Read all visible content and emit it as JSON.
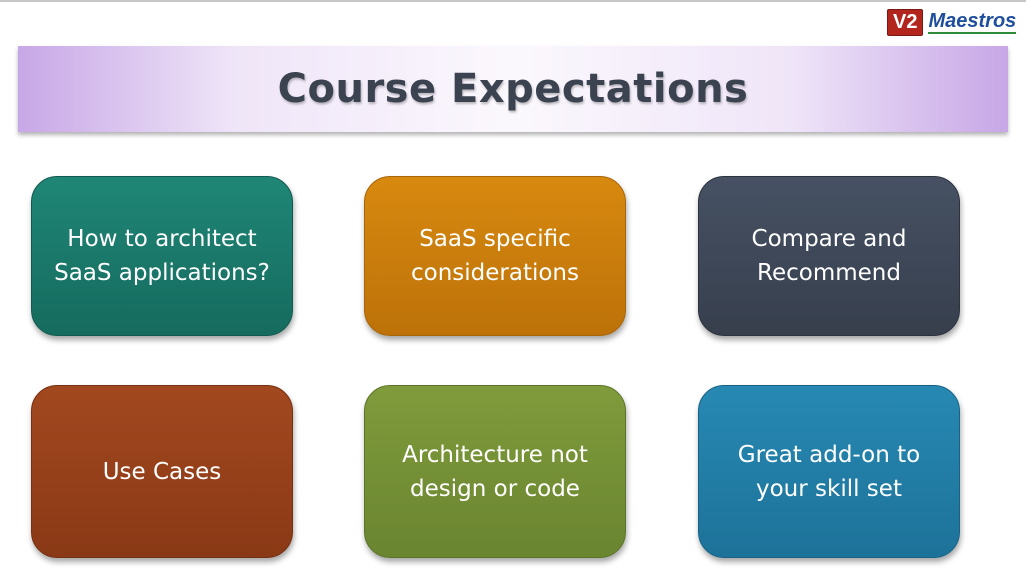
{
  "logo": {
    "badge": "V2",
    "name": "Maestros"
  },
  "title": "Course Expectations",
  "cards": [
    {
      "lines": [
        "How to architect",
        "SaaS applications?"
      ]
    },
    {
      "lines": [
        "SaaS specific",
        "considerations"
      ]
    },
    {
      "lines": [
        "Compare and",
        "Recommend"
      ]
    },
    {
      "lines": [
        "Use Cases"
      ]
    },
    {
      "lines": [
        "Architecture not",
        "design or code"
      ]
    },
    {
      "lines": [
        "Great add-on to",
        "your skill set"
      ]
    }
  ],
  "colors": {
    "teal": "#1a7a6b",
    "orange": "#c97c0c",
    "slate": "#3e4757",
    "rust": "#963f1a",
    "olive": "#759035",
    "blue": "#227ea6",
    "title_text": "#3b4250",
    "banner": "#c7a7e6"
  }
}
